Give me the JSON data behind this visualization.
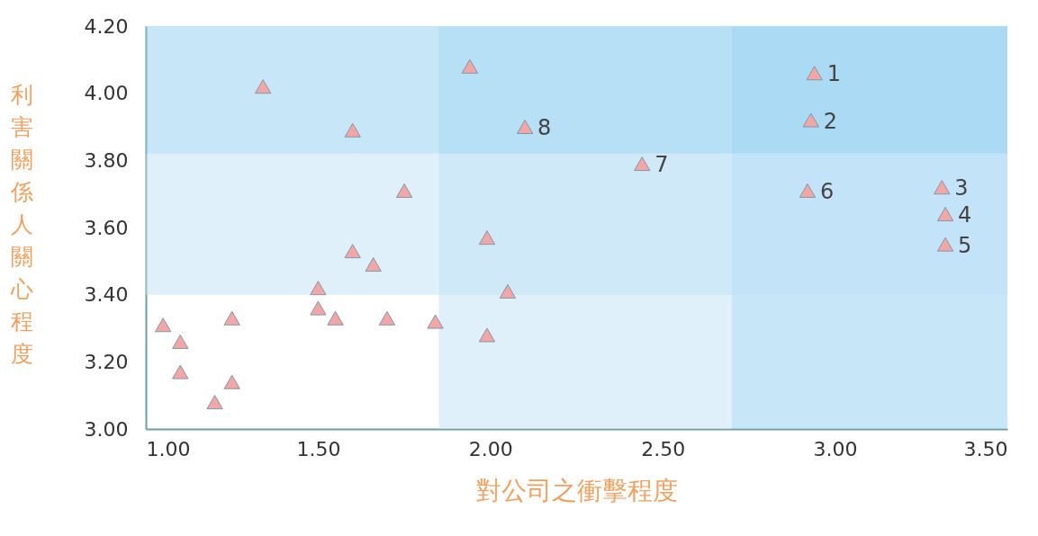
{
  "chart_data": {
    "type": "scatter",
    "xlabel": "對公司之衝擊程度",
    "ylabel": "利害關係人關心程度",
    "x": [
      2.94,
      2.93,
      3.31,
      3.32,
      3.32,
      2.92,
      2.44,
      2.1,
      1.94,
      1.34,
      1.6,
      1.75,
      1.99,
      1.6,
      1.66,
      1.5,
      2.05,
      1.5,
      1.55,
      1.25,
      1.7,
      1.84,
      1.05,
      1.1,
      1.99,
      1.1,
      1.25,
      1.2
    ],
    "values": [
      4.06,
      3.92,
      3.72,
      3.64,
      3.55,
      3.71,
      3.79,
      3.9,
      4.08,
      4.02,
      3.89,
      3.71,
      3.57,
      3.53,
      3.49,
      3.42,
      3.41,
      3.36,
      3.33,
      3.33,
      3.33,
      3.32,
      3.31,
      3.26,
      3.28,
      3.17,
      3.14,
      3.08
    ],
    "annotations": [
      {
        "text": "1",
        "x": 2.94,
        "y": 4.06
      },
      {
        "text": "2",
        "x": 2.93,
        "y": 3.92
      },
      {
        "text": "3",
        "x": 3.31,
        "y": 3.72
      },
      {
        "text": "4",
        "x": 3.32,
        "y": 3.64
      },
      {
        "text": "5",
        "x": 3.32,
        "y": 3.55
      },
      {
        "text": "6",
        "x": 2.92,
        "y": 3.71
      },
      {
        "text": "7",
        "x": 2.44,
        "y": 3.79
      },
      {
        "text": "8",
        "x": 2.1,
        "y": 3.9
      }
    ],
    "color": "#f4a6a6",
    "marker": "triangle",
    "grid": false,
    "xlim": [
      1,
      3.5
    ],
    "xticks": [
      {
        "value": 1,
        "label": "1.00"
      },
      {
        "value": 1.5,
        "label": "1.50"
      },
      {
        "value": 2,
        "label": "2.00"
      },
      {
        "value": 2.5,
        "label": "2.50"
      },
      {
        "value": 3,
        "label": "3.00"
      },
      {
        "value": 3.5,
        "label": "3.50"
      }
    ],
    "ylim": [
      3,
      4.2
    ],
    "yticks": [
      {
        "value": 3,
        "label": "3.00"
      },
      {
        "value": 3.2,
        "label": "3.20"
      },
      {
        "value": 3.4,
        "label": "3.40"
      },
      {
        "value": 3.6,
        "label": "3.60"
      },
      {
        "value": 3.8,
        "label": "3.80"
      },
      {
        "value": 4,
        "label": "4.00"
      },
      {
        "value": 4.2,
        "label": "4.20"
      }
    ],
    "bands": [
      {
        "axis": "x",
        "from": 1.85,
        "to": 2.7,
        "color": "#bfe2f7"
      },
      {
        "axis": "x",
        "from": 2.7,
        "to": 3.5,
        "color": "#8fcdf2"
      },
      {
        "axis": "y",
        "from": 3.4,
        "to": 3.82,
        "color": "#bfe2f7"
      },
      {
        "axis": "y",
        "from": 3.82,
        "to": 4.2,
        "color": "#8fcdf2"
      }
    ]
  }
}
